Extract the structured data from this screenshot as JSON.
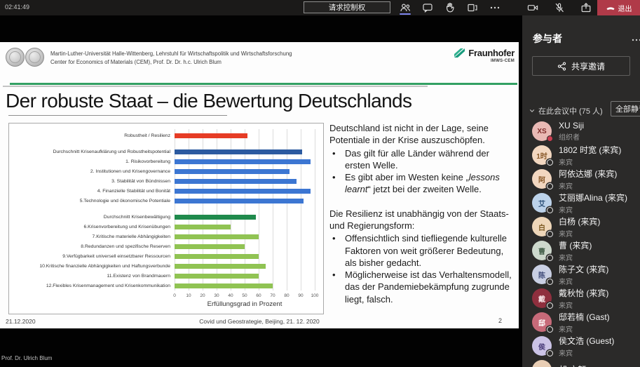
{
  "colors": {
    "accent_purple": "#7b83eb",
    "leave_red": "#b03a48",
    "fraunhofer_green": "#179c7d",
    "divider_green": "#33a063",
    "bar_red": "#e63c25",
    "bar_dark_blue": "#2c5aa0",
    "bar_blue": "#3c76d2",
    "bar_dark_green": "#1f8a4c",
    "bar_light_green": "#90c353"
  },
  "meeting": {
    "topbar": {
      "time": "02:41:49",
      "request_control_label": "请求控制权",
      "leave_label": "退出",
      "icons": [
        "participants",
        "chat",
        "raise-hand",
        "breakout-rooms",
        "more",
        "camera",
        "mic-muted",
        "share-screen",
        "hang-up"
      ]
    },
    "presenter_label": "Prof. Dr. Ulrich Blum",
    "sidebar": {
      "title": "参与者",
      "more_icon": "ellipsis",
      "share_invite_label": "共享邀请",
      "section_label": "在此会议中 (75 人)",
      "mute_all_label": "全部静音",
      "participants": [
        {
          "initials": "XS",
          "name": "XU Siji",
          "role": "组织者",
          "bg": "#e9b9b4",
          "fg": "#7d2b28",
          "badge": "busy"
        },
        {
          "initials": "1时",
          "name": "1802 时宽 (来宾)",
          "role": "来宾",
          "bg": "#f2d7c0",
          "fg": "#8a5a2a",
          "badge": "none"
        },
        {
          "initials": "阿",
          "name": "阿依达娜 (来宾)",
          "role": "来宾",
          "bg": "#f2d7c0",
          "fg": "#8a5a2a",
          "badge": "none"
        },
        {
          "initials": "艾",
          "name": "艾丽娜Alina (来宾)",
          "role": "来宾",
          "bg": "#bcd2ea",
          "fg": "#2b4f77",
          "badge": "none"
        },
        {
          "initials": "白",
          "name": "白杨 (来宾)",
          "role": "来宾",
          "bg": "#eed6b9",
          "fg": "#7d5a23",
          "badge": "none"
        },
        {
          "initials": "曹",
          "name": "曹 (来宾)",
          "role": "来宾",
          "bg": "#cdd8cc",
          "fg": "#44604a",
          "badge": "none"
        },
        {
          "initials": "陈",
          "name": "陈子文 (来宾)",
          "role": "来宾",
          "bg": "#c9cfe3",
          "fg": "#3e4a78",
          "badge": "none"
        },
        {
          "initials": "戴",
          "name": "戴秋怡 (来宾)",
          "role": "来宾",
          "bg": "#8f2f3e",
          "fg": "#f5dfe2",
          "badge": "none"
        },
        {
          "initials": "邸",
          "name": "邸若楠 (Gast)",
          "role": "来宾",
          "bg": "#c76a79",
          "fg": "#ffffff",
          "badge": "none"
        },
        {
          "initials": "侯",
          "name": "侯文浩 (Guest)",
          "role": "来宾",
          "bg": "#cbc3e6",
          "fg": "#4a3d7a",
          "badge": "none"
        },
        {
          "initials": "胡文",
          "name": "胡 文轩",
          "role": "",
          "bg": "#e8cdb4",
          "fg": "#7a5a30",
          "badge": "none"
        }
      ]
    }
  },
  "slide": {
    "header": {
      "line1": "Martin-Luther-Universität Halle-Wittenberg, Lehrstuhl für Wirtschaftspolitik und Wirtschaftsforschung",
      "line2": "Center for Economics of Materials (CEM), Prof. Dr. Dr. h.c. Ulrich Blum",
      "fraunhofer_name": "Fraunhofer",
      "fraunhofer_sub": "IMWS-CEM"
    },
    "title": "Der robuste Staat – die Bewertung Deutschlands",
    "text": {
      "p1": "Deutschland ist nicht in der Lage, seine Potentiale in der Krise auszuschöpfen.",
      "b1": "Das gilt für alle Länder während der ersten Welle.",
      "b2_pre": "Es gibt aber im Westen keine „",
      "b2_italic": "lessons learnt",
      "b2_post": "“ jetzt bei der zweiten Welle.",
      "p2": "Die Resilienz ist unabhängig von der Staats- und Regierungsform:",
      "b3": "Offensichtlich sind tiefliegende kulturelle Faktoren von weit größerer Bedeutung, als bisher gedacht.",
      "b4": "Möglicherweise ist das Verhaltensmodell, das der Pandemiebekämpfung zugrunde liegt, falsch."
    },
    "footer": {
      "date": "21.12.2020",
      "center": "Covid und Geostrategie, Beijing, 21. 12. 2020",
      "page": "2"
    }
  },
  "chart_data": {
    "type": "bar",
    "orientation": "horizontal",
    "xlabel": "Erfüllungsgrad in Prozent",
    "xlim": [
      0,
      100
    ],
    "xticks": [
      0,
      10,
      20,
      30,
      40,
      50,
      60,
      70,
      80,
      90,
      100
    ],
    "grid": true,
    "rows": [
      {
        "label": "Robustheit / Resilienz",
        "value": 52,
        "color": "#e63c25",
        "gap_before": false
      },
      {
        "label": "Durchschnitt Krisenaufklärung und Robustheitspotential",
        "value": 91,
        "color": "#2c5aa0",
        "gap_before": true
      },
      {
        "label": "1. Risikovorbereitung",
        "value": 97,
        "color": "#3c76d2",
        "gap_before": false
      },
      {
        "label": "2. Institutionen und Krisengovernance",
        "value": 82,
        "color": "#3c76d2",
        "gap_before": false
      },
      {
        "label": "3. Stabilität von Bündnissen",
        "value": 87,
        "color": "#3c76d2",
        "gap_before": false
      },
      {
        "label": "4. Finanzielle Stabilität und Bonität",
        "value": 97,
        "color": "#3c76d2",
        "gap_before": false
      },
      {
        "label": "5.Technologie und ökonomische Potentiale",
        "value": 92,
        "color": "#3c76d2",
        "gap_before": false
      },
      {
        "label": "Durchschnitt Krisenbewältigung",
        "value": 58,
        "color": "#1f8a4c",
        "gap_before": true
      },
      {
        "label": "6.Krisenvorbereitung und Krisenübungen",
        "value": 40,
        "color": "#90c353",
        "gap_before": false
      },
      {
        "label": "7.Kritische materielle Abhängigkeiten",
        "value": 60,
        "color": "#90c353",
        "gap_before": false
      },
      {
        "label": "8.Redundanzen und spezifische Reserven",
        "value": 50,
        "color": "#90c353",
        "gap_before": false
      },
      {
        "label": "9.Verfügbarkeit universell einsetzbarer Ressourcen",
        "value": 60,
        "color": "#90c353",
        "gap_before": false
      },
      {
        "label": "10.Kritische finanzielle Abhängigkeiten und Haftungsverbunde",
        "value": 65,
        "color": "#90c353",
        "gap_before": false
      },
      {
        "label": "11.Existenz von Brandmauern",
        "value": 60,
        "color": "#90c353",
        "gap_before": false
      },
      {
        "label": "12.Flexibles Krisenmanagement und Krisenkommunikation",
        "value": 70,
        "color": "#90c353",
        "gap_before": false
      }
    ]
  }
}
